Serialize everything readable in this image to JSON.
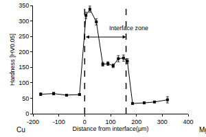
{
  "chart_data": {
    "type": "line",
    "x_label": "Distance from interface(μm)",
    "y_label": "Hardness [HV0.05]",
    "end_labels": {
      "left": "Cu",
      "right": "Mg"
    },
    "x": [
      -170,
      -120,
      -70,
      -20,
      5,
      20,
      45,
      70,
      90,
      110,
      130,
      150,
      165,
      185,
      230,
      270,
      320
    ],
    "values": [
      63,
      65,
      60,
      62,
      318,
      338,
      297,
      160,
      162,
      155,
      178,
      180,
      170,
      33,
      35,
      38,
      45
    ],
    "errors": [
      4,
      4,
      3,
      3,
      10,
      10,
      10,
      6,
      6,
      6,
      10,
      10,
      8,
      3,
      3,
      3,
      10
    ],
    "color": "#000000",
    "marker": "square",
    "xlim": [
      -200,
      400
    ],
    "xticks": [
      -200,
      -100,
      0,
      100,
      200,
      300,
      400
    ],
    "ylim": [
      0,
      350
    ],
    "yticks": [
      0,
      50,
      100,
      150,
      200,
      250,
      300,
      350
    ],
    "grid": false,
    "interface_zone": {
      "label": "Interface zone",
      "start": 0,
      "end": 160,
      "arrow_y": 248,
      "label_x": 170,
      "label_y": 276
    }
  }
}
